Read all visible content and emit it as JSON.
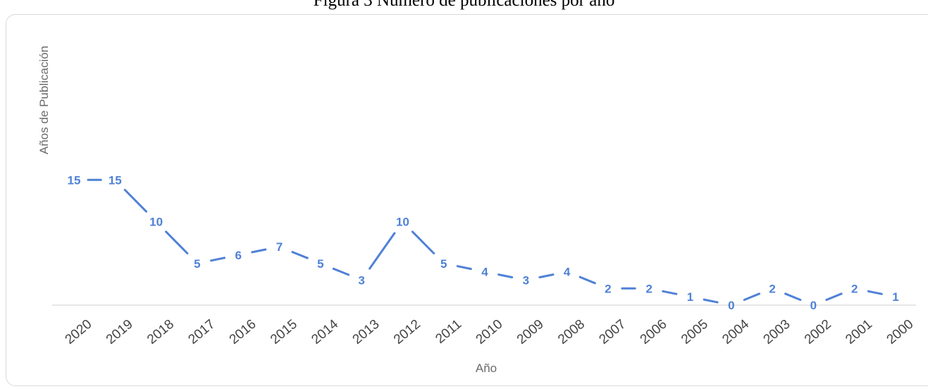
{
  "caption": "Figura 3 Número de publicaciones por año",
  "colors": {
    "series": "#4f81d6",
    "baseline": "#cccccc",
    "axis_text": "#444444",
    "axis_title": "#6b6b6b"
  },
  "chart_data": {
    "type": "line",
    "title": "",
    "xlabel": "Año",
    "ylabel": "Años de Publicación",
    "categories": [
      "2020",
      "2019",
      "2018",
      "2017",
      "2016",
      "2015",
      "2014",
      "2013",
      "2012",
      "2011",
      "2010",
      "2009",
      "2008",
      "2007",
      "2006",
      "2005",
      "2004",
      "2003",
      "2002",
      "2001",
      "2000"
    ],
    "series": [
      {
        "values": [
          15,
          15,
          10,
          5,
          6,
          7,
          5,
          3,
          10,
          5,
          4,
          3,
          4,
          2,
          2,
          1,
          0,
          2,
          0,
          2,
          1
        ]
      }
    ],
    "data_labels": true,
    "line_style": "dashed",
    "ylim": [
      0,
      32
    ],
    "grid": false,
    "legend": "none"
  }
}
